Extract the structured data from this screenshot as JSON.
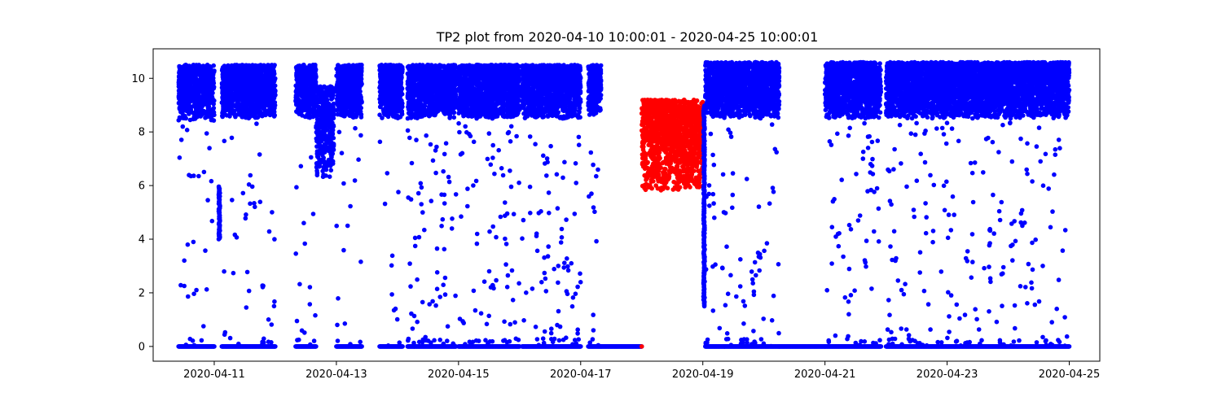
{
  "chart_data": {
    "type": "scatter",
    "title": "TP2 plot from 2020-04-10 10:00:01 - 2020-04-25 10:00:01",
    "xlabel": "",
    "ylabel": "",
    "xlim": [
      "2020-04-10 00:00",
      "2020-04-25 12:00"
    ],
    "ylim": [
      -0.55,
      11.1
    ],
    "x_ticks": [
      "2020-04-11",
      "2020-04-13",
      "2020-04-15",
      "2020-04-17",
      "2020-04-19",
      "2020-04-21",
      "2020-04-23",
      "2020-04-25"
    ],
    "y_ticks": [
      0,
      2,
      4,
      6,
      8,
      10
    ],
    "grid": false,
    "legend": "none",
    "series_colors": {
      "blue": "#0000ff",
      "red": "#ff0000"
    },
    "segments": [
      {
        "color": "blue",
        "start": "2020-04-10 10:00",
        "end": "2020-04-11 00:00",
        "band": [
          8.4,
          10.5
        ],
        "baseline": 0,
        "sparse_mid": 25,
        "zero_fill": true
      },
      {
        "color": "blue",
        "start": "2020-04-11 03:00",
        "end": "2020-04-12 00:00",
        "band": [
          8.5,
          10.5
        ],
        "baseline": 0,
        "sparse_mid": 35,
        "zero_fill": true
      },
      {
        "color": "blue",
        "start": "2020-04-12 08:00",
        "end": "2020-04-12 16:00",
        "band": [
          8.5,
          10.5
        ],
        "baseline": 0,
        "sparse_mid": 15,
        "zero_fill": true
      },
      {
        "color": "blue",
        "start": "2020-04-12 16:00",
        "end": "2020-04-12 23:00",
        "band": [
          6.3,
          9.7
        ],
        "baseline": null,
        "sparse_mid": 0,
        "zero_fill": false
      },
      {
        "color": "blue",
        "start": "2020-04-13 00:00",
        "end": "2020-04-13 10:00",
        "band": [
          8.5,
          10.5
        ],
        "baseline": 0,
        "sparse_mid": 15,
        "zero_fill": true
      },
      {
        "color": "blue",
        "start": "2020-04-13 17:00",
        "end": "2020-04-14 02:00",
        "band": [
          8.5,
          10.5
        ],
        "baseline": 0,
        "sparse_mid": 10,
        "zero_fill": true
      },
      {
        "color": "blue",
        "start": "2020-04-14 04:00",
        "end": "2020-04-14 23:00",
        "band": [
          8.5,
          10.5
        ],
        "baseline": 0,
        "sparse_mid": 60,
        "zero_fill": true
      },
      {
        "color": "blue",
        "start": "2020-04-15 00:00",
        "end": "2020-04-16 00:00",
        "band": [
          8.5,
          10.5
        ],
        "baseline": 0,
        "sparse_mid": 70,
        "zero_fill": true
      },
      {
        "color": "blue",
        "start": "2020-04-16 01:00",
        "end": "2020-04-17 00:00",
        "band": [
          8.5,
          10.5
        ],
        "baseline": 0,
        "sparse_mid": 70,
        "zero_fill": true
      },
      {
        "color": "blue",
        "start": "2020-04-17 03:00",
        "end": "2020-04-17 08:00",
        "band": [
          8.6,
          10.5
        ],
        "baseline": 0,
        "sparse_mid": 12,
        "zero_fill": true
      },
      {
        "color": "blue",
        "start": "2020-04-17 08:00",
        "end": "2020-04-18 00:00",
        "band": null,
        "baseline": 0,
        "sparse_mid": 0,
        "zero_fill": true
      },
      {
        "color": "red",
        "start": "2020-04-18 00:00",
        "end": "2020-04-19 00:00",
        "band": [
          5.8,
          9.2
        ],
        "baseline": null,
        "sparse_mid": 0,
        "zero_fill": false
      },
      {
        "color": "blue",
        "start": "2020-04-19 01:00",
        "end": "2020-04-20 06:00",
        "band": [
          8.5,
          10.6
        ],
        "baseline": 0,
        "sparse_mid": 70,
        "zero_fill": true
      },
      {
        "color": "blue",
        "start": "2020-04-20 06:00",
        "end": "2020-04-21 00:00",
        "band": null,
        "baseline": 0,
        "sparse_mid": 0,
        "zero_fill": true
      },
      {
        "color": "blue",
        "start": "2020-04-21 00:00",
        "end": "2020-04-21 22:00",
        "band": [
          8.5,
          10.6
        ],
        "baseline": 0,
        "sparse_mid": 55,
        "zero_fill": true
      },
      {
        "color": "blue",
        "start": "2020-04-22 00:00",
        "end": "2020-04-23 03:00",
        "band": [
          8.5,
          10.6
        ],
        "baseline": 0,
        "sparse_mid": 70,
        "zero_fill": true
      },
      {
        "color": "blue",
        "start": "2020-04-23 03:00",
        "end": "2020-04-25 00:00",
        "band": [
          8.5,
          10.6
        ],
        "baseline": 0,
        "sparse_mid": 100,
        "zero_fill": true
      }
    ],
    "features": [
      {
        "color": "blue",
        "type": "vertical-streak",
        "at": "2020-04-19 00:30",
        "range": [
          1.5,
          9.0
        ]
      },
      {
        "color": "blue",
        "type": "vertical-streak",
        "at": "2020-04-11 02:00",
        "range": [
          4.0,
          6.0
        ]
      },
      {
        "color": "red",
        "type": "point",
        "x": "2020-04-18 00:00",
        "y": 0
      }
    ]
  }
}
